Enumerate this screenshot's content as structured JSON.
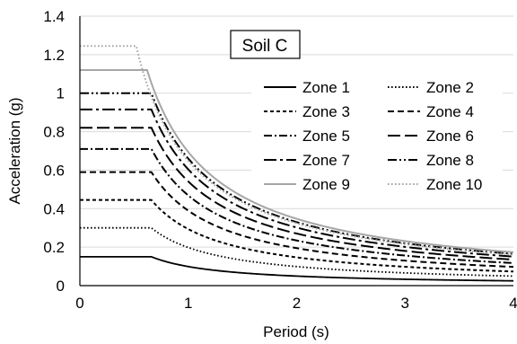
{
  "chart_data": {
    "type": "line",
    "title": "",
    "xlabel": "Period (s)",
    "ylabel": "Acceleration (g)",
    "xlim": [
      0,
      4
    ],
    "ylim": [
      0,
      1.4
    ],
    "x_ticks": [
      0,
      1,
      2,
      3,
      4
    ],
    "x_tick_labels": [
      "0",
      "1",
      "2",
      "3",
      "4"
    ],
    "y_ticks": [
      0,
      0.2,
      0.4,
      0.6,
      0.8,
      1.0,
      1.2,
      1.4
    ],
    "y_tick_labels": [
      "0",
      "0.2",
      "0.4",
      "0.6",
      "0.8",
      "1",
      "1.2",
      "1.4"
    ],
    "grid": "horizontal",
    "legend_position": "top-right",
    "annotation": "Soil C",
    "series": [
      {
        "name": "Zone 1",
        "plateau": 0.15,
        "corner_period": 0.66,
        "style": "solid",
        "color": "#000000"
      },
      {
        "name": "Zone 2",
        "plateau": 0.3,
        "corner_period": 0.66,
        "style": "dotted",
        "color": "#000000"
      },
      {
        "name": "Zone 3",
        "plateau": 0.445,
        "corner_period": 0.66,
        "style": "short-dash",
        "color": "#000000"
      },
      {
        "name": "Zone 4",
        "plateau": 0.59,
        "corner_period": 0.66,
        "style": "dash",
        "color": "#000000"
      },
      {
        "name": "Zone 5",
        "plateau": 0.71,
        "corner_period": 0.66,
        "style": "dash-dot",
        "color": "#000000"
      },
      {
        "name": "Zone 6",
        "plateau": 0.82,
        "corner_period": 0.66,
        "style": "long-dash",
        "color": "#000000"
      },
      {
        "name": "Zone 7",
        "plateau": 0.915,
        "corner_period": 0.66,
        "style": "long-dash-dot",
        "color": "#000000"
      },
      {
        "name": "Zone 8",
        "plateau": 1.0,
        "corner_period": 0.66,
        "style": "dash-dot-dot",
        "color": "#000000"
      },
      {
        "name": "Zone 9",
        "plateau": 1.12,
        "corner_period": 0.62,
        "style": "solid",
        "color": "#a6a6a6"
      },
      {
        "name": "Zone 10",
        "plateau": 1.245,
        "corner_period": 0.52,
        "style": "dotted",
        "color": "#a6a6a6"
      }
    ]
  }
}
